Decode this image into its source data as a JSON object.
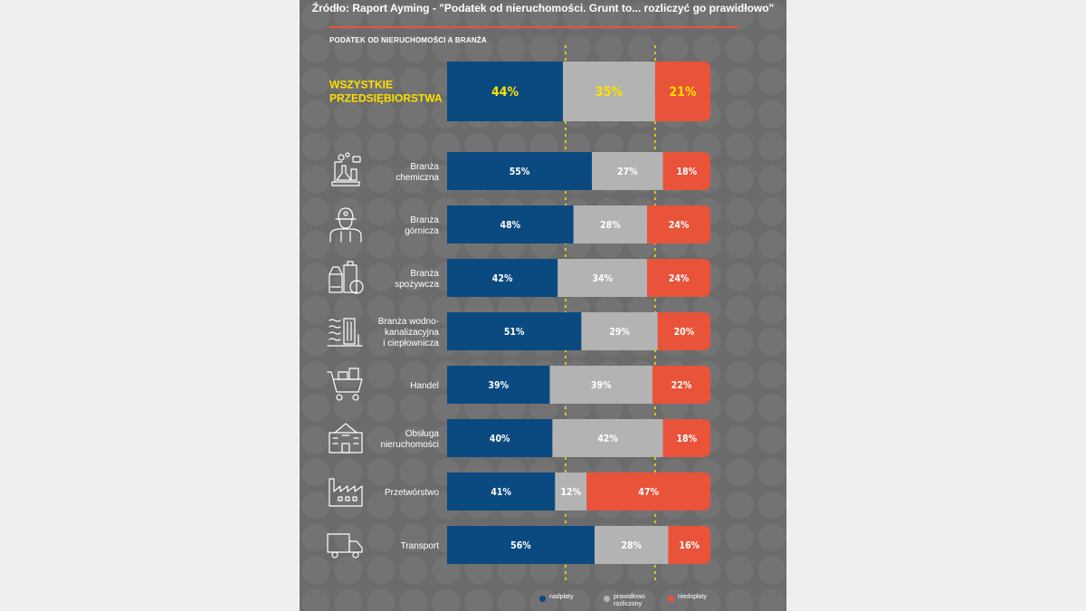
{
  "header": {
    "source": "Źródło: Raport Ayming - \"Podatek od nieruchomości. Grunt to... rozliczyć go prawidłowo\"",
    "subtitle": "PODATEK OD NIERUCHOMOŚCI A BRANŻA"
  },
  "colors": {
    "panel": "#6b6b6b",
    "nadplaty": "#0b4a80",
    "prawidlowo": "#b3b3b3",
    "niedoplaty": "#e8533a",
    "accent_yellow": "#ffe000"
  },
  "legend": {
    "nadplaty": "nadpłaty",
    "prawidlowo": "prawidłowo rozliczony",
    "niedoplaty": "niedopłaty"
  },
  "chart_data": {
    "type": "bar",
    "orientation": "horizontal-stacked-100",
    "title": "PODATEK OD NIERUCHOMOŚCI A BRANŻA",
    "series_names": [
      "nadpłaty",
      "prawidłowo rozliczony",
      "niedopłaty"
    ],
    "categories": [
      [
        "WSZYSTKIE",
        "PRZEDSIĘBIORSTWA"
      ],
      [
        "Branża",
        "chemiczna"
      ],
      [
        "Branża",
        "górnicza"
      ],
      [
        "Branża",
        "spożywcza"
      ],
      [
        "Branża wodno-",
        "kanalizacyjna",
        "i ciepłownicza"
      ],
      [
        "Handel"
      ],
      [
        "Obsługa",
        "nieruchomości"
      ],
      [
        "Przetwórstwo"
      ],
      [
        "Transport"
      ]
    ],
    "icons": [
      null,
      "chemistry-icon",
      "miner-icon",
      "food-icon",
      "water-plant-icon",
      "cart-icon",
      "building-icon",
      "factory-icon",
      "truck-icon"
    ],
    "values": [
      [
        44,
        35,
        21
      ],
      [
        55,
        27,
        18
      ],
      [
        48,
        28,
        24
      ],
      [
        42,
        34,
        24
      ],
      [
        51,
        29,
        20
      ],
      [
        39,
        39,
        22
      ],
      [
        40,
        42,
        18
      ],
      [
        41,
        12,
        47
      ],
      [
        56,
        28,
        16
      ]
    ],
    "value_labels": [
      [
        "44%",
        "35%",
        "21%"
      ],
      [
        "55%",
        "27%",
        "18%"
      ],
      [
        "48%",
        "28%",
        "24%"
      ],
      [
        "42%",
        "34%",
        "24%"
      ],
      [
        "51%",
        "29%",
        "20%"
      ],
      [
        "39%",
        "39%",
        "22%"
      ],
      [
        "40%",
        "42%",
        "18%"
      ],
      [
        "41%",
        "12%",
        "47%"
      ],
      [
        "56%",
        "28%",
        "16%"
      ]
    ],
    "reference_lines_percent": [
      45,
      79
    ],
    "xlim": [
      0,
      100
    ]
  }
}
